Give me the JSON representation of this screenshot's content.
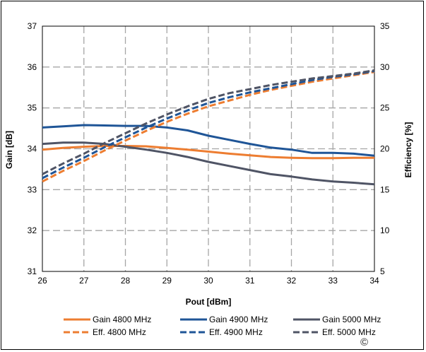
{
  "chart_data": {
    "type": "line",
    "title": "",
    "xlabel": "Pout [dBm]",
    "ylabel_left": "Gain [dB]",
    "ylabel_right": "Efficiency [%]",
    "xlim": [
      26,
      34
    ],
    "ylim_left": [
      31,
      37
    ],
    "ylim_right": [
      5,
      35
    ],
    "x_ticks": [
      "26",
      "27",
      "28",
      "29",
      "30",
      "31",
      "32",
      "33",
      "34"
    ],
    "y_left_ticks": [
      "31",
      "32",
      "33",
      "34",
      "35",
      "36",
      "37"
    ],
    "y_right_ticks": [
      "5",
      "10",
      "15",
      "20",
      "25",
      "30",
      "35"
    ],
    "grid": true,
    "legend_position": "bottom",
    "copyright": "©",
    "series": [
      {
        "name": "Gain 4800 MHz",
        "axis": "left",
        "style": "solid",
        "color": "#ED7D31",
        "x": [
          26,
          26.5,
          27,
          27.5,
          28,
          28.5,
          29,
          29.5,
          30,
          30.5,
          31,
          31.5,
          32,
          32.5,
          33,
          33.5,
          34
        ],
        "y": [
          33.98,
          34.02,
          34.05,
          34.07,
          34.07,
          34.06,
          34.02,
          33.98,
          33.93,
          33.88,
          33.84,
          33.8,
          33.78,
          33.77,
          33.77,
          33.78,
          33.78
        ]
      },
      {
        "name": "Gain 4900 MHz",
        "axis": "left",
        "style": "solid",
        "color": "#1F5597",
        "x": [
          26,
          26.5,
          27,
          27.5,
          28,
          28.5,
          29,
          29.5,
          30,
          30.5,
          31,
          31.5,
          32,
          32.5,
          33,
          33.5,
          34
        ],
        "y": [
          34.52,
          34.55,
          34.58,
          34.57,
          34.56,
          34.56,
          34.52,
          34.45,
          34.32,
          34.22,
          34.12,
          34.03,
          33.98,
          33.9,
          33.9,
          33.88,
          33.83
        ]
      },
      {
        "name": "Gain 5000 MHz",
        "axis": "left",
        "style": "solid",
        "color": "#4F5465",
        "x": [
          26,
          26.5,
          27,
          27.5,
          28,
          28.5,
          29,
          29.5,
          30,
          30.5,
          31,
          31.5,
          32,
          32.5,
          33,
          33.5,
          34
        ],
        "y": [
          34.12,
          34.15,
          34.15,
          34.12,
          34.05,
          33.98,
          33.9,
          33.8,
          33.68,
          33.58,
          33.48,
          33.38,
          33.32,
          33.25,
          33.2,
          33.17,
          33.13
        ]
      },
      {
        "name": "Eff. 4800 MHz",
        "axis": "right",
        "style": "dashed",
        "color": "#ED7D31",
        "x": [
          26,
          26.5,
          27,
          27.5,
          28,
          28.5,
          29,
          29.5,
          30,
          30.5,
          31,
          31.5,
          32,
          32.5,
          33,
          33.5,
          34
        ],
        "y": [
          16.0,
          17.3,
          18.5,
          19.8,
          21.0,
          22.2,
          23.3,
          24.3,
          25.2,
          25.9,
          26.6,
          27.2,
          27.7,
          28.2,
          28.6,
          29.0,
          29.4
        ]
      },
      {
        "name": "Eff. 4900 MHz",
        "axis": "right",
        "style": "dashed",
        "color": "#1F5597",
        "x": [
          26,
          26.5,
          27,
          27.5,
          28,
          28.5,
          29,
          29.5,
          30,
          30.5,
          31,
          31.5,
          32,
          32.5,
          33,
          33.5,
          34
        ],
        "y": [
          16.4,
          17.7,
          18.9,
          20.2,
          21.4,
          22.6,
          23.7,
          24.7,
          25.6,
          26.3,
          26.9,
          27.4,
          27.9,
          28.4,
          28.8,
          29.1,
          29.5
        ]
      },
      {
        "name": "Eff. 5000 MHz",
        "axis": "right",
        "style": "dashed",
        "color": "#4F5465",
        "x": [
          26,
          26.5,
          27,
          27.5,
          28,
          28.5,
          29,
          29.5,
          30,
          30.5,
          31,
          31.5,
          32,
          32.5,
          33,
          33.5,
          34
        ],
        "y": [
          16.9,
          18.2,
          19.4,
          20.7,
          21.9,
          23.1,
          24.2,
          25.2,
          26.1,
          26.8,
          27.3,
          27.8,
          28.2,
          28.6,
          28.9,
          29.2,
          29.6
        ]
      }
    ]
  }
}
